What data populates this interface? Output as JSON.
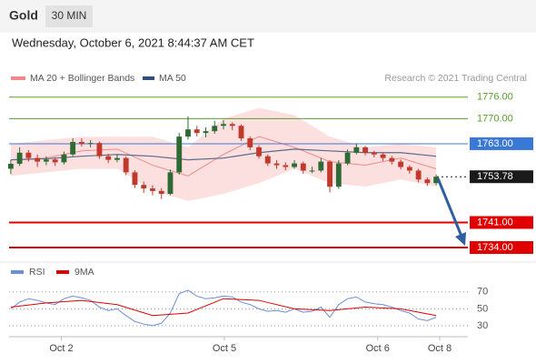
{
  "chart_data": {
    "type": "candlestick",
    "title": "Gold",
    "timeframe": "30 MIN",
    "subtitle": "Wednesday, October 6, 2021 8:44:37 AM CET",
    "source": "Research © 2021 Trading Central",
    "up_color": "#2e6b34",
    "down_color": "#c0392b",
    "xlim": [
      -0.5,
      48.5
    ],
    "ylim": [
      1730.7,
      1779
    ],
    "xticks": [
      {
        "value": 5.7,
        "label": "Oct 2"
      },
      {
        "value": 24.1,
        "label": "Oct 5"
      },
      {
        "value": 41.4,
        "label": "Oct 6"
      },
      {
        "value": 48.4,
        "label": "Oct 8"
      }
    ],
    "candles": [
      [
        1756,
        1758.5,
        1754.5,
        1757.4
      ],
      [
        1757.4,
        1762,
        1756.8,
        1760.5
      ],
      [
        1760.5,
        1761.2,
        1758,
        1759
      ],
      [
        1759,
        1760,
        1756.5,
        1758
      ],
      [
        1758,
        1759.5,
        1757,
        1758.6
      ],
      [
        1758.6,
        1759.2,
        1756.8,
        1757.8
      ],
      [
        1757.8,
        1760.8,
        1757.2,
        1760
      ],
      [
        1760,
        1764.5,
        1759.5,
        1763.5
      ],
      [
        1763.5,
        1764.5,
        1762.2,
        1763
      ],
      [
        1763,
        1764,
        1762,
        1763.2
      ],
      [
        1763.2,
        1763.6,
        1758.8,
        1759.5
      ],
      [
        1759.5,
        1760.2,
        1757.6,
        1758.5
      ],
      [
        1758.5,
        1760,
        1757.8,
        1759
      ],
      [
        1759,
        1759.4,
        1754.2,
        1755
      ],
      [
        1755,
        1755.6,
        1750.6,
        1751.5
      ],
      [
        1751.5,
        1752.4,
        1749.2,
        1750.5
      ],
      [
        1750.5,
        1751.4,
        1748.6,
        1749.8
      ],
      [
        1749.8,
        1750.6,
        1747.6,
        1749
      ],
      [
        1749,
        1755.8,
        1748.6,
        1755
      ],
      [
        1755,
        1766,
        1754.4,
        1765
      ],
      [
        1765,
        1770.6,
        1764.2,
        1767
      ],
      [
        1767,
        1768,
        1765,
        1766
      ],
      [
        1766,
        1767.6,
        1764.8,
        1766.5
      ],
      [
        1766.5,
        1769.4,
        1765.8,
        1768
      ],
      [
        1768,
        1769.6,
        1767,
        1768.5
      ],
      [
        1768.5,
        1769,
        1766.8,
        1768
      ],
      [
        1768,
        1768.4,
        1763.8,
        1764.5
      ],
      [
        1764.5,
        1765,
        1761.2,
        1762
      ],
      [
        1762,
        1762.6,
        1758.8,
        1759.5
      ],
      [
        1759.5,
        1760,
        1756.8,
        1757.5
      ],
      [
        1757.5,
        1758.4,
        1756,
        1757
      ],
      [
        1757,
        1757.8,
        1755.6,
        1756.5
      ],
      [
        1756.5,
        1758.4,
        1756,
        1757.5
      ],
      [
        1757.5,
        1758,
        1754.6,
        1755.5
      ],
      [
        1755.5,
        1756.6,
        1754.8,
        1755.5
      ],
      [
        1755.5,
        1759,
        1755,
        1758
      ],
      [
        1758,
        1758.4,
        1749.4,
        1751
      ],
      [
        1751,
        1758.4,
        1750.4,
        1757.5
      ],
      [
        1757.5,
        1761.4,
        1757,
        1760.5
      ],
      [
        1760.5,
        1763,
        1760,
        1762
      ],
      [
        1762,
        1762.4,
        1759.8,
        1760.5
      ],
      [
        1760.5,
        1761,
        1759.2,
        1760
      ],
      [
        1760,
        1760.6,
        1758.2,
        1759
      ],
      [
        1759,
        1759.6,
        1757.2,
        1758
      ],
      [
        1758,
        1758.6,
        1755.8,
        1756.5
      ],
      [
        1756.5,
        1757,
        1754.6,
        1755.5
      ],
      [
        1755.5,
        1756,
        1752.2,
        1753
      ],
      [
        1753,
        1753.6,
        1751.2,
        1752
      ],
      [
        1752,
        1754.4,
        1751.4,
        1753.78
      ]
    ],
    "bollinger": {
      "name": "MA 20 + Bollinger Bands",
      "color": "#f08a8a",
      "fill": "#fbd3d3",
      "x": [
        0,
        4,
        8,
        12,
        16,
        20,
        24,
        28,
        32,
        36,
        40,
        44,
        48
      ],
      "middle": [
        1758.5,
        1759,
        1761,
        1761.5,
        1757,
        1754,
        1760,
        1765,
        1762,
        1758,
        1757,
        1759,
        1756
      ],
      "upper": [
        1763,
        1764,
        1765,
        1765,
        1765,
        1762,
        1770,
        1773,
        1771,
        1765,
        1762,
        1763,
        1762
      ],
      "lower": [
        1754,
        1755,
        1756,
        1756,
        1750,
        1747,
        1749,
        1752,
        1756,
        1752,
        1751,
        1753,
        1751
      ]
    },
    "ma50": {
      "name": "MA 50",
      "color": "#5b6b8c",
      "x": [
        0,
        4,
        8,
        12,
        16,
        20,
        24,
        28,
        32,
        36,
        40,
        44,
        48
      ],
      "values": [
        1758.5,
        1758.8,
        1759.5,
        1760,
        1759.5,
        1758.5,
        1759,
        1760.5,
        1761.5,
        1761,
        1760.5,
        1760.5,
        1759.5
      ]
    },
    "levels": [
      {
        "value": 1776,
        "label": "1776.00",
        "color": "#5aa02c",
        "style": "text"
      },
      {
        "value": 1770,
        "label": "1770.00",
        "color": "#5aa02c",
        "style": "text"
      },
      {
        "value": 1763,
        "label": "1763.00",
        "color": "#3a78d8",
        "style": "box"
      },
      {
        "value": 1753.78,
        "color": "#1a1a1a",
        "style": "box"
      },
      {
        "value": 1741,
        "label": "1741.00",
        "color": "#e00000",
        "style": "box"
      },
      {
        "value": 1734,
        "label": "1734.00",
        "color": "#e00000",
        "style": "box"
      }
    ],
    "rsi": {
      "ylim": [
        17,
        87
      ],
      "yticks": [
        30,
        50,
        70
      ],
      "series": [
        {
          "name": "RSI",
          "color": "#6a8fd8",
          "x": [
            0,
            1,
            2,
            3,
            4,
            5,
            6,
            7,
            8,
            9,
            10,
            11,
            12,
            13,
            14,
            15,
            16,
            17,
            18,
            19,
            20,
            21,
            22,
            23,
            24,
            25,
            26,
            27,
            28,
            29,
            30,
            31,
            32,
            33,
            34,
            35,
            36,
            37,
            38,
            39,
            40,
            41,
            42,
            43,
            44,
            45,
            46,
            47,
            48
          ],
          "values": [
            50,
            58,
            62,
            60,
            57,
            55,
            62,
            65,
            63,
            60,
            52,
            48,
            50,
            42,
            35,
            32,
            30,
            33,
            45,
            68,
            72,
            65,
            62,
            63,
            65,
            64,
            58,
            55,
            50,
            47,
            48,
            46,
            50,
            46,
            47,
            52,
            40,
            55,
            62,
            64,
            58,
            56,
            55,
            52,
            48,
            45,
            38,
            36,
            40
          ]
        },
        {
          "name": "9MA",
          "color": "#e00000",
          "x": [
            0,
            4,
            8,
            12,
            16,
            20,
            24,
            28,
            32,
            36,
            40,
            44,
            48
          ],
          "values": [
            52,
            57,
            60,
            55,
            42,
            45,
            62,
            60,
            50,
            48,
            52,
            50,
            42
          ]
        }
      ]
    }
  }
}
